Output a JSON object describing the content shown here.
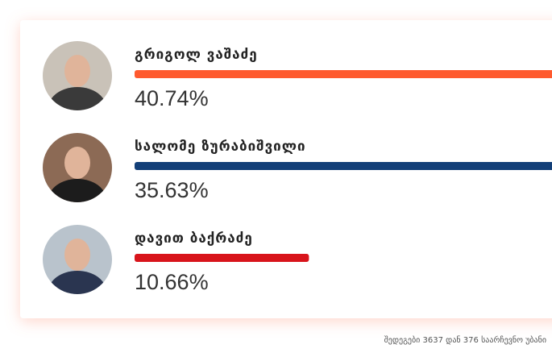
{
  "chart_data": {
    "type": "bar",
    "orientation": "horizontal",
    "categories": [
      "გრიგოლ ვაშაძე",
      "სალომე ზურაბიშვილი",
      "დავით ბაქრაძე"
    ],
    "values": [
      40.74,
      35.63,
      10.66
    ],
    "value_labels": [
      "40.74%",
      "35.63%",
      "10.66%"
    ],
    "colors": [
      "#ff5a2e",
      "#133f78",
      "#d8141b"
    ],
    "footnote": "შედეგები 3637 დან 376 საარჩევნო უბანი"
  }
}
